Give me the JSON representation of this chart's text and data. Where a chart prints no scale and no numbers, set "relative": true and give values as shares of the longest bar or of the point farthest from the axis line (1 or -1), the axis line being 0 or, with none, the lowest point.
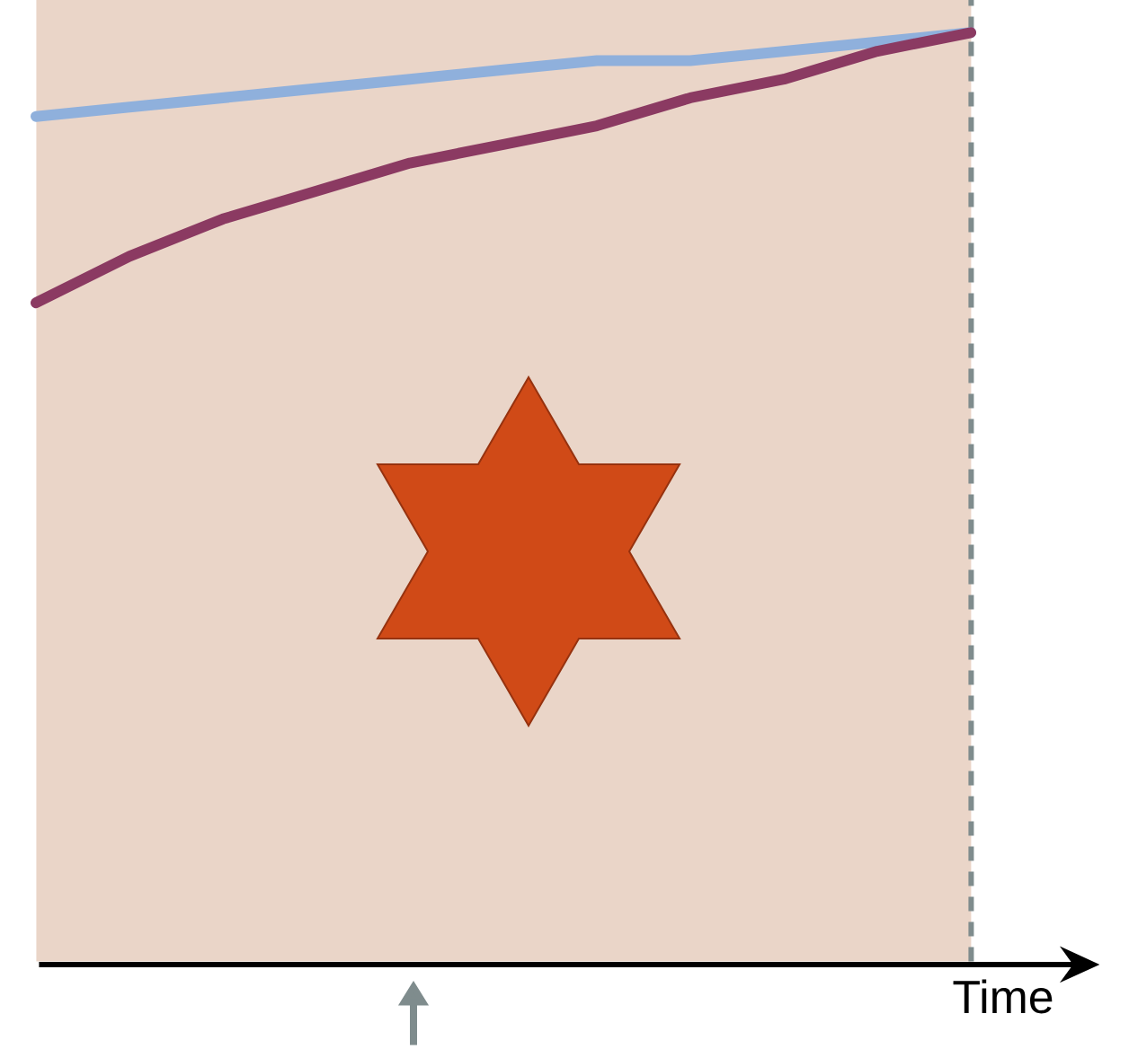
{
  "chart_data": {
    "type": "line",
    "relative": true,
    "xlabel": "Time",
    "categories": [
      null,
      null,
      null,
      null,
      null,
      null,
      null,
      null,
      null,
      null,
      null
    ],
    "series": [
      {
        "color": "#8fb0dc",
        "values": [
          0.91,
          0.92,
          0.93,
          0.94,
          0.95,
          0.96,
          0.97,
          0.97,
          0.98,
          0.99,
          1.0
        ]
      },
      {
        "color": "#8b3a62",
        "values": [
          0.71,
          0.76,
          0.8,
          0.83,
          0.86,
          0.88,
          0.9,
          0.93,
          0.95,
          0.98,
          1.0
        ]
      }
    ]
  }
}
